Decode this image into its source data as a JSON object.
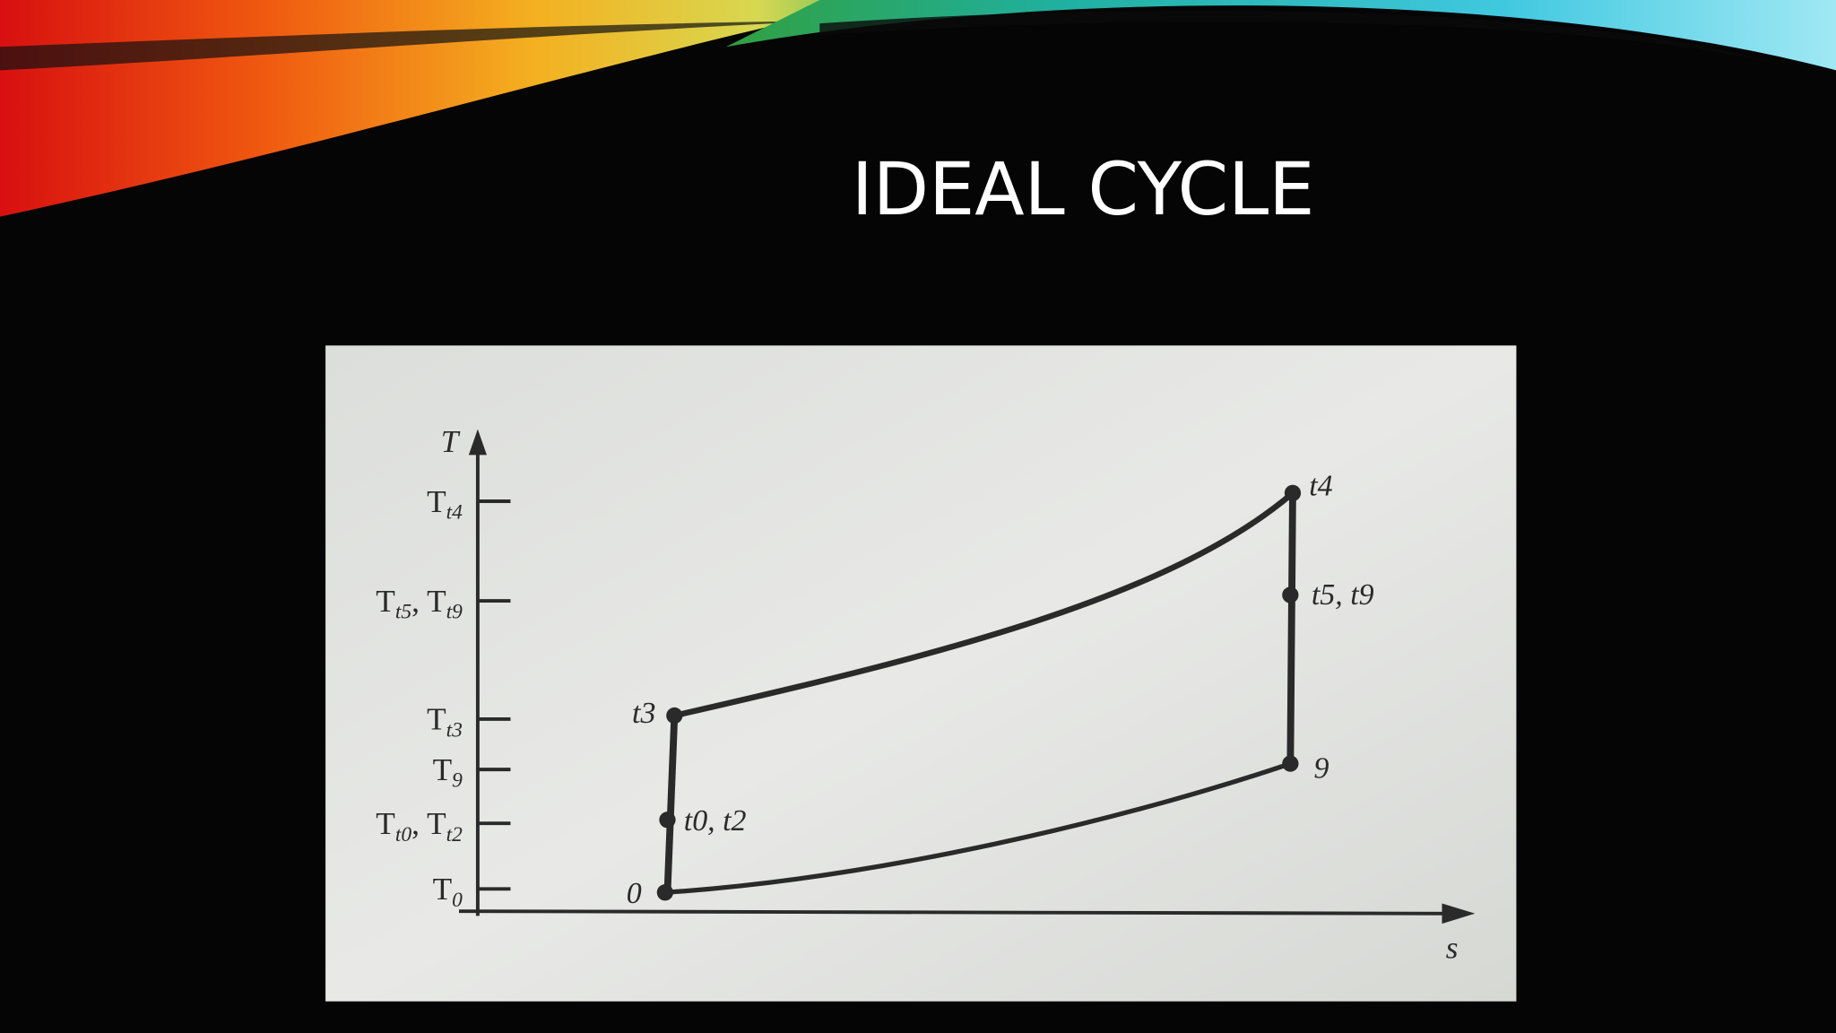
{
  "title": "IDEAL CYCLE",
  "diagram": {
    "y_axis_label": "T",
    "x_axis_label": "s",
    "y_ticks": [
      [
        "T",
        "t4"
      ],
      [
        "T",
        "t5",
        ", T",
        "t9"
      ],
      [
        "T",
        "t3"
      ],
      [
        "T",
        "9"
      ],
      [
        "T",
        "t0",
        ", T",
        "t2"
      ],
      [
        "T",
        "0"
      ]
    ],
    "points": [
      "t4",
      "t5, t9",
      "9",
      "t3",
      "t0, t2",
      "0"
    ]
  }
}
